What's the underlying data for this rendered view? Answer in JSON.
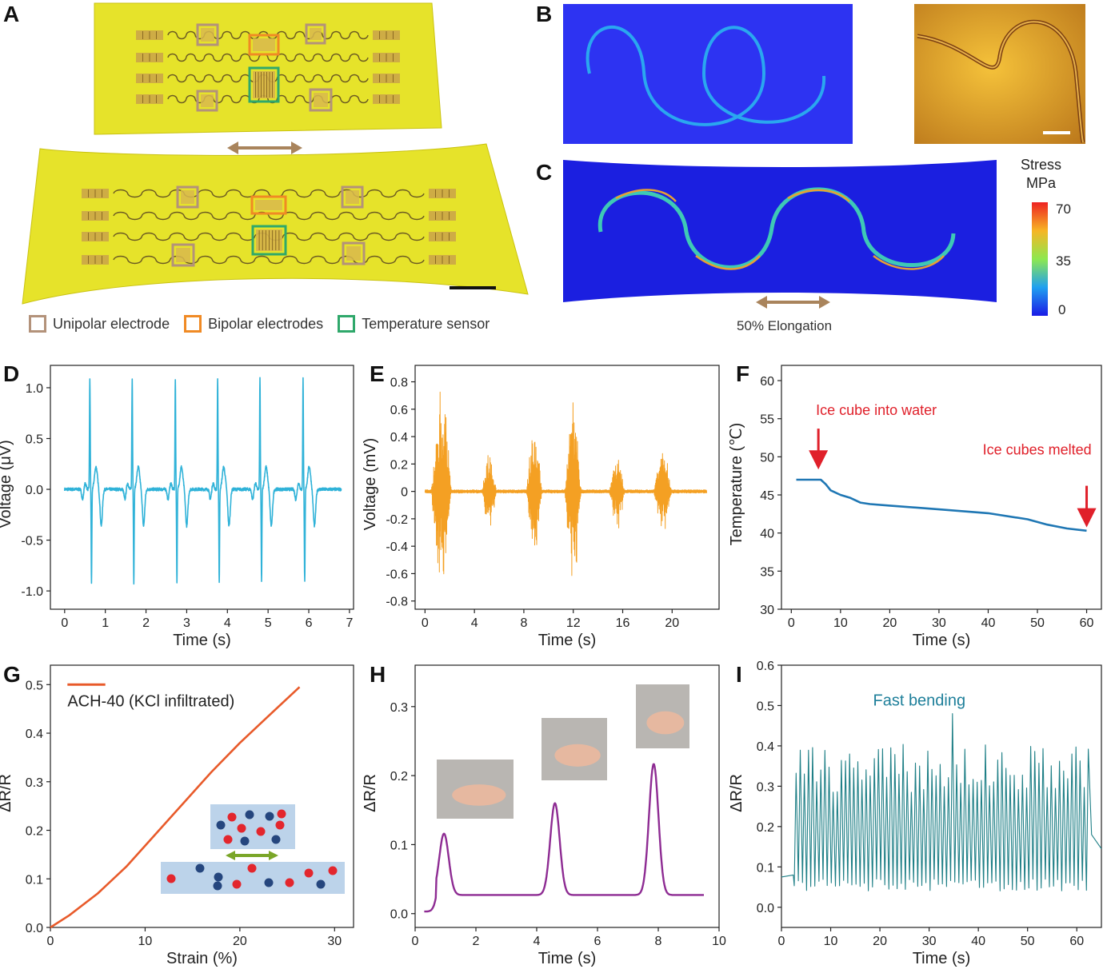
{
  "panel_letters": [
    "A",
    "B",
    "C",
    "D",
    "E",
    "F",
    "G",
    "H",
    "I"
  ],
  "panelA": {
    "legend": [
      {
        "label": "Unipolar electrode",
        "color": "#b3927a"
      },
      {
        "label": "Bipolar electrodes",
        "color": "#f08a24"
      },
      {
        "label": "Temperature sensor",
        "color": "#2fa86b"
      }
    ]
  },
  "panelC": {
    "colorbar_title_1": "Stress",
    "colorbar_title_2": "MPa",
    "colorbar_ticks": [
      "70",
      "35",
      "0"
    ],
    "elongation_label": "50% Elongation"
  },
  "colors": {
    "arrow": "#a9845c",
    "sim_bg": "#2d33f2",
    "film": "#e6e32a",
    "trace_D": "#2fb2d8",
    "trace_E": "#f4a023",
    "trace_F": "#1f77b4",
    "trace_G": "#e85a2a",
    "trace_H": "#8e2c93",
    "trace_I": "#1e7f86",
    "annot_red": "#e0202a",
    "annot_teal": "#1e7f9a"
  },
  "chart_data": [
    {
      "panel": "D",
      "type": "line",
      "xlabel": "Time (s)",
      "ylabel": "Voltage (μV)",
      "xlim": [
        -0.35,
        7.1
      ],
      "ylim": [
        -1.18,
        1.22
      ],
      "xticks": [
        "0",
        "1",
        "2",
        "3",
        "4",
        "5",
        "6",
        "7"
      ],
      "yticks": [
        "1.0",
        "0.5",
        "0.0",
        "-0.5",
        "-1.0"
      ],
      "beats_s": [
        0.62,
        1.66,
        2.72,
        3.76,
        4.8,
        5.86
      ],
      "r_peak_uV": 1.04,
      "s_trough_uV": -0.92
    },
    {
      "panel": "E",
      "type": "line",
      "xlabel": "Time (s)",
      "ylabel": "Voltage (mV)",
      "xlim": [
        -0.8,
        23.8
      ],
      "ylim": [
        -0.86,
        0.92
      ],
      "xticks": [
        "0",
        "4",
        "8",
        "12",
        "16",
        "20"
      ],
      "yticks": [
        "0.8",
        "0.6",
        "0.4",
        "0.2",
        "0",
        "-0.2",
        "-0.4",
        "-0.6",
        "-0.8"
      ],
      "bursts": [
        {
          "start": 0.5,
          "end": 2.8,
          "amp": 0.82
        },
        {
          "start": 4.6,
          "end": 6.3,
          "amp": 0.3
        },
        {
          "start": 8.2,
          "end": 10.0,
          "amp": 0.5
        },
        {
          "start": 11.3,
          "end": 13.2,
          "amp": 0.74
        },
        {
          "start": 14.9,
          "end": 16.7,
          "amp": 0.3
        },
        {
          "start": 18.5,
          "end": 20.6,
          "amp": 0.36
        }
      ]
    },
    {
      "panel": "F",
      "type": "line",
      "xlabel": "Time (s)",
      "ylabel": "Temperature (℃)",
      "xlim": [
        -2,
        63
      ],
      "ylim": [
        30,
        62
      ],
      "xticks": [
        "0",
        "10",
        "20",
        "30",
        "40",
        "50",
        "60"
      ],
      "yticks": [
        "60",
        "55",
        "50",
        "45",
        "40",
        "35",
        "30"
      ],
      "x": [
        1,
        6,
        7,
        8,
        10,
        12,
        14,
        16,
        20,
        30,
        40,
        48,
        52,
        56,
        60
      ],
      "y": [
        47.0,
        47.0,
        46.4,
        45.6,
        45.0,
        44.6,
        44.0,
        43.8,
        43.6,
        43.1,
        42.6,
        41.8,
        41.1,
        40.6,
        40.3
      ],
      "annotations": [
        "Ice cube into water",
        "Ice cubes melted"
      ],
      "arrow_x": [
        5.5,
        60
      ]
    },
    {
      "panel": "G",
      "type": "line",
      "xlabel": "Strain (%)",
      "ylabel": "ΔR/R",
      "xlim": [
        0,
        32
      ],
      "ylim": [
        0,
        0.54
      ],
      "xticks": [
        "0",
        "10",
        "20",
        "30"
      ],
      "yticks": [
        "0.5",
        "0.4",
        "0.3",
        "0.2",
        "0.1",
        "0.0"
      ],
      "series": [
        {
          "name": "ACH-40 (KCl infiltrated)",
          "x": [
            0,
            2,
            5,
            8,
            11,
            14,
            17,
            20,
            23,
            26.3
          ],
          "y": [
            0,
            0.025,
            0.07,
            0.125,
            0.19,
            0.255,
            0.32,
            0.38,
            0.435,
            0.495
          ]
        }
      ]
    },
    {
      "panel": "H",
      "type": "line",
      "xlabel": "Time (s)",
      "ylabel": "ΔR/R",
      "xlim": [
        0,
        10
      ],
      "ylim": [
        -0.02,
        0.36
      ],
      "xticks": [
        "0",
        "2",
        "4",
        "6",
        "8",
        "10"
      ],
      "yticks": [
        "0.3",
        "0.2",
        "0.1",
        "0.0"
      ],
      "peaks": [
        {
          "t": 0.95,
          "v": 0.116
        },
        {
          "t": 4.6,
          "v": 0.16
        },
        {
          "t": 7.85,
          "v": 0.217
        }
      ],
      "baseline": 0.027,
      "end_value": 0.027
    },
    {
      "panel": "I",
      "type": "line",
      "xlabel": "Time (s)",
      "ylabel": "ΔR/R",
      "xlim": [
        0,
        65
      ],
      "ylim": [
        -0.05,
        0.6
      ],
      "xticks": [
        "0",
        "10",
        "20",
        "30",
        "40",
        "50",
        "60"
      ],
      "yticks": [
        "0.6",
        "0.5",
        "0.4",
        "0.3",
        "0.2",
        "0.1",
        "0.0"
      ],
      "annotation": "Fast bending",
      "cycles": 72,
      "low": 0.04,
      "high_typical": 0.32,
      "high_max": 0.48
    }
  ]
}
